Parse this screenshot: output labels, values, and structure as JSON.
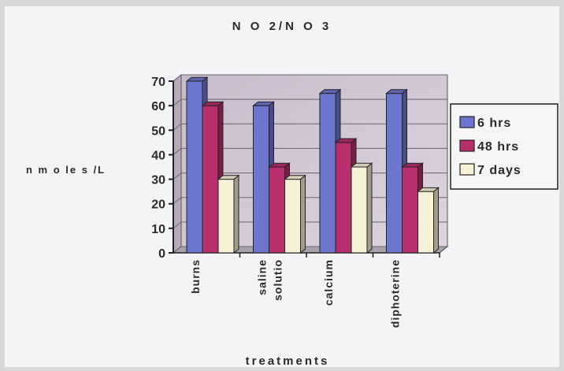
{
  "chart_data": {
    "type": "bar",
    "title": "N O 2/N O 3",
    "xlabel": "treatments",
    "ylabel": "n m o le s /L",
    "categories": [
      "burns",
      "saline solutio",
      "calcium",
      "diphoterine"
    ],
    "series": [
      {
        "name": "6 hrs",
        "values": [
          70,
          60,
          65,
          65
        ],
        "color": "#6d76cf"
      },
      {
        "name": "48 hrs",
        "values": [
          60,
          35,
          45,
          35
        ],
        "color": "#b82f6d"
      },
      {
        "name": "7 days",
        "values": [
          30,
          30,
          35,
          25
        ],
        "color": "#f7f2d6"
      }
    ],
    "ylim": [
      0,
      70
    ],
    "yticks": [
      "0",
      "10",
      "20",
      "30",
      "40",
      "50",
      "60",
      "70"
    ],
    "grid": true,
    "legend": "right"
  }
}
